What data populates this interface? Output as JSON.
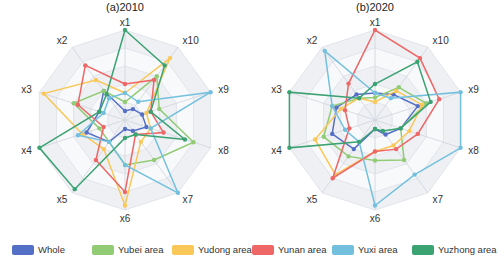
{
  "chart_data": [
    {
      "type": "radar",
      "title": "(a)2010",
      "categories": [
        "x1",
        "x2",
        "x3",
        "x4",
        "x5",
        "x6",
        "x7",
        "x8",
        "x9",
        "x10"
      ],
      "ylim": [
        0,
        1
      ],
      "yticks": [
        0.2,
        0.4,
        0.6,
        0.8,
        1
      ],
      "grid": true,
      "tick_labels": false,
      "legend": "bottom",
      "marker": "circle",
      "series": [
        {
          "name": "Whole",
          "color": "#5470c6",
          "values": [
            0.1,
            0.4,
            0.3,
            0.45,
            0.3,
            0.1,
            0.15,
            0.25,
            0.2,
            0.15
          ]
        },
        {
          "name": "Yubei area",
          "color": "#91cc75",
          "values": [
            0.2,
            0.4,
            0.6,
            0.3,
            0.3,
            0.5,
            0.55,
            0.8,
            0.4,
            0.6
          ]
        },
        {
          "name": "Yudong area",
          "color": "#fac858",
          "values": [
            0.3,
            0.55,
            0.95,
            0.5,
            0.4,
            0.95,
            0.3,
            0.3,
            0.25,
            0.85
          ]
        },
        {
          "name": "Yunan area",
          "color": "#ee6666",
          "values": [
            0.4,
            0.75,
            0.55,
            0.25,
            0.55,
            0.8,
            0.2,
            0.45,
            0.3,
            0.55
          ]
        },
        {
          "name": "Yuxi area",
          "color": "#73c0de",
          "values": [
            0.3,
            0.3,
            0.25,
            0.55,
            0.3,
            0.5,
            1.0,
            0.3,
            1.0,
            0.25
          ]
        },
        {
          "name": "Yuzhong area",
          "color": "#3ba272",
          "values": [
            1.0,
            0.35,
            0.3,
            1.0,
            0.95,
            0.2,
            0.2,
            0.7,
            0.3,
            0.75
          ]
        }
      ]
    },
    {
      "type": "radar",
      "title": "(b)2020",
      "categories": [
        "x1",
        "x2",
        "x3",
        "x4",
        "x5",
        "x6",
        "x7",
        "x8",
        "x9",
        "x10"
      ],
      "ylim": [
        0,
        1
      ],
      "yticks": [
        0.2,
        0.4,
        0.6,
        0.8,
        1
      ],
      "grid": true,
      "tick_labels": false,
      "legend": "bottom",
      "marker": "circle",
      "series": [
        {
          "name": "Whole",
          "color": "#5470c6",
          "values": [
            0.3,
            0.35,
            0.45,
            0.5,
            0.4,
            0.1,
            0.2,
            0.3,
            0.5,
            0.35
          ]
        },
        {
          "name": "Yubei area",
          "color": "#91cc75",
          "values": [
            0.25,
            0.3,
            0.5,
            0.6,
            0.5,
            0.45,
            0.55,
            0.3,
            0.6,
            0.45
          ]
        },
        {
          "name": "Yudong area",
          "color": "#fac858",
          "values": [
            0.2,
            0.3,
            0.4,
            0.7,
            0.75,
            0.35,
            0.35,
            0.4,
            0.55,
            0.4
          ]
        },
        {
          "name": "Yunan area",
          "color": "#ee6666",
          "values": [
            1.0,
            0.5,
            0.35,
            0.3,
            0.8,
            0.35,
            0.4,
            0.5,
            0.75,
            0.85
          ]
        },
        {
          "name": "Yuxi area",
          "color": "#73c0de",
          "values": [
            0.3,
            0.95,
            0.5,
            0.35,
            0.3,
            0.95,
            0.75,
            1.0,
            1.0,
            0.3
          ]
        },
        {
          "name": "Yuzhong area",
          "color": "#3ba272",
          "values": [
            0.4,
            0.3,
            1.0,
            1.0,
            0.3,
            0.1,
            0.15,
            0.3,
            0.65,
            0.8
          ]
        }
      ]
    }
  ]
}
